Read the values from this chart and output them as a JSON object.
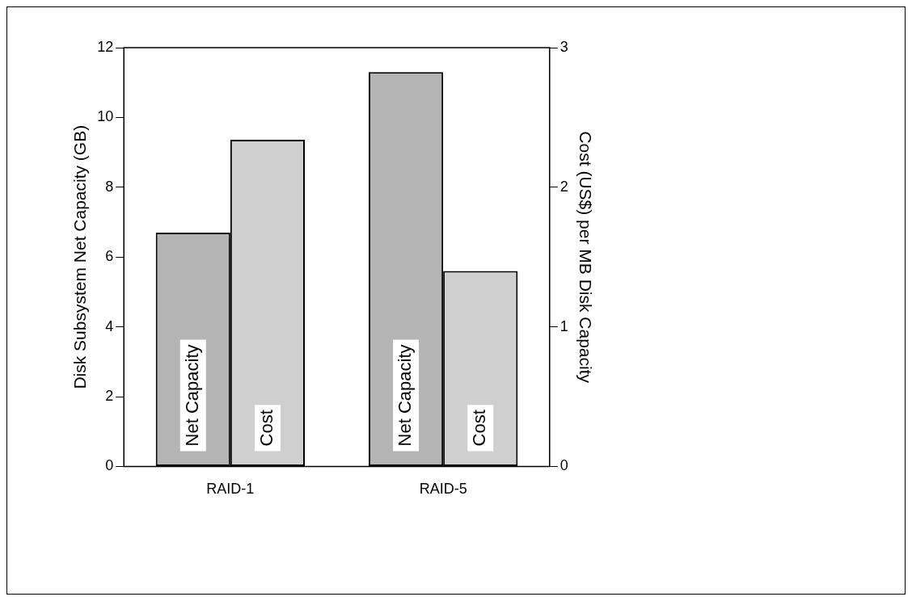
{
  "chart_data": {
    "type": "bar",
    "categories": [
      "RAID-1",
      "RAID-5"
    ],
    "ylabel": "Disk Subsystem Net Capacity (GB)",
    "y2label": "Cost (US$) per MB Disk Capacity",
    "series": [
      {
        "name": "Net Capacity",
        "color": "#b4b4b4",
        "values": [
          6.7,
          11.3
        ]
      },
      {
        "name": "Cost",
        "color": "#cfcfcf",
        "values": [
          2.34,
          1.4
        ],
        "axis": "y2"
      }
    ],
    "ylim": [
      0,
      12
    ],
    "yticks": [
      0,
      2,
      4,
      6,
      8,
      10,
      12
    ],
    "y2lim": [
      0,
      3
    ],
    "y2ticks": [
      0,
      1,
      2,
      3
    ],
    "grid": false,
    "legend": false
  }
}
